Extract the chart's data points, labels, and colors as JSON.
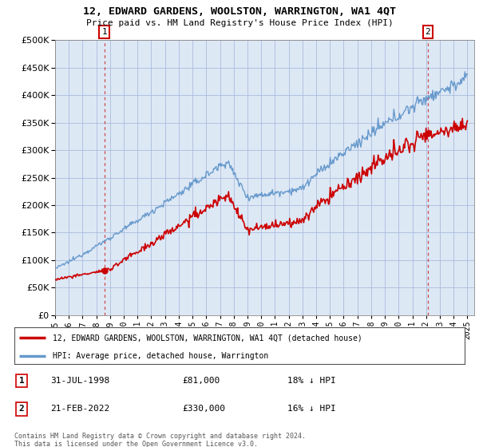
{
  "title": "12, EDWARD GARDENS, WOOLSTON, WARRINGTON, WA1 4QT",
  "subtitle": "Price paid vs. HM Land Registry's House Price Index (HPI)",
  "legend_line1": "12, EDWARD GARDENS, WOOLSTON, WARRINGTON, WA1 4QT (detached house)",
  "legend_line2": "HPI: Average price, detached house, Warrington",
  "point1_date": "31-JUL-1998",
  "point1_price": "£81,000",
  "point1_hpi": "18% ↓ HPI",
  "point2_date": "21-FEB-2022",
  "point2_price": "£330,000",
  "point2_hpi": "16% ↓ HPI",
  "footer": "Contains HM Land Registry data © Crown copyright and database right 2024.\nThis data is licensed under the Open Government Licence v3.0.",
  "red_color": "#cc0000",
  "blue_color": "#6699cc",
  "bg_color": "#dde8f5",
  "grid_color": "#aabbdd",
  "ylim_min": 0,
  "ylim_max": 500000,
  "yticks": [
    0,
    50000,
    100000,
    150000,
    200000,
    250000,
    300000,
    350000,
    400000,
    450000,
    500000
  ],
  "sale1_year": 1998.58,
  "sale1_price": 81000,
  "sale2_year": 2022.13,
  "sale2_price": 330000
}
